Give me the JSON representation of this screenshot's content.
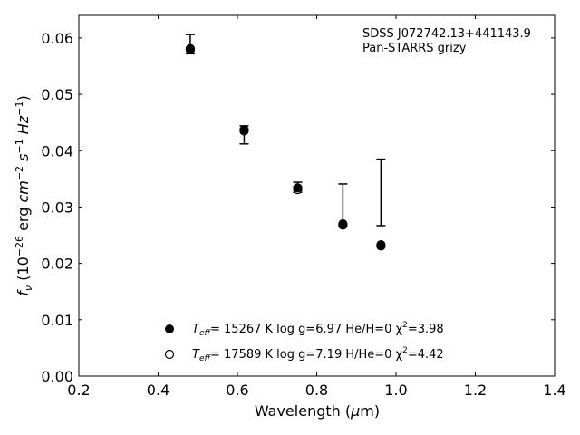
{
  "chart_data": {
    "type": "scatter",
    "xlabel": "Wavelength (μm)",
    "ylabel": "f_ν (10^-26 erg cm^-2 s^-1 Hz^-1)",
    "xlim": [
      0.2,
      1.4
    ],
    "ylim": [
      0.0,
      0.064
    ],
    "xticks": [
      "0.2",
      "0.4",
      "0.6",
      "0.8",
      "1.0",
      "1.2",
      "1.4"
    ],
    "yticks": [
      "0.00",
      "0.01",
      "0.02",
      "0.03",
      "0.04",
      "0.05",
      "0.06"
    ],
    "annotation": [
      "SDSS J072742.13+441143.9",
      "Pan-STARRS grizy"
    ],
    "observed": {
      "x": [
        0.481,
        0.617,
        0.752,
        0.866,
        0.962
      ],
      "y": [
        0.0589,
        0.0428,
        0.0335,
        0.0304,
        0.0326
      ],
      "yerr": [
        0.0017,
        0.0016,
        0.0009,
        0.0037,
        0.0059
      ]
    },
    "series": [
      {
        "name": "T_eff= 15267 K  log g=6.97  He/H=0  χ²=3.98",
        "label": {
          "base": "T",
          "sub": "eff",
          "rest": "= 15267 K  log g=6.97  He/H=0  χ",
          "sup": "2",
          "tail": "=3.98"
        },
        "marker": "filled",
        "x": [
          0.481,
          0.617,
          0.752,
          0.866,
          0.962
        ],
        "y": [
          0.0581,
          0.0437,
          0.0334,
          0.027,
          0.0233
        ]
      },
      {
        "name": "T_eff= 17589 K  log g=7.19  H/He=0  χ²=4.42",
        "label": {
          "base": "T",
          "sub": "eff",
          "rest": "= 17589 K  log g=7.19  H/He=0  χ",
          "sup": "2",
          "tail": "=4.42"
        },
        "marker": "open",
        "x": [
          0.481,
          0.617,
          0.752,
          0.866,
          0.962
        ],
        "y": [
          0.0579,
          0.0435,
          0.0331,
          0.0268,
          0.0231
        ]
      }
    ],
    "legend_position": "lower-center",
    "grid": false
  }
}
